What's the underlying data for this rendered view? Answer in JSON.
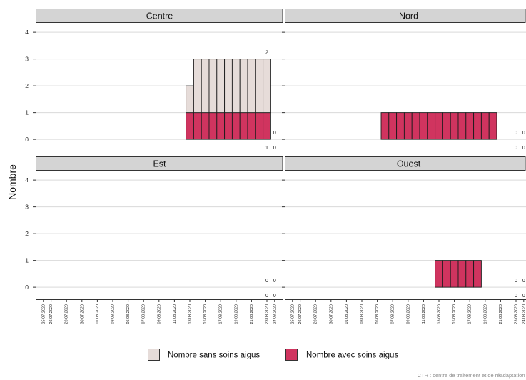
{
  "chart_data": {
    "type": "bar",
    "stacked": true,
    "ylabel": "Nombre",
    "ylim": [
      -0.45,
      4.35
    ],
    "yticks": [
      0,
      1,
      2,
      3,
      4
    ],
    "xlim": [
      "24.07.2020",
      "25.08.2020"
    ],
    "xticks": [
      "25.07.2020",
      "26.07.2020",
      "28.07.2020",
      "30.07.2020",
      "01.08.2020",
      "03.08.2020",
      "05.08.2020",
      "07.08.2020",
      "09.08.2020",
      "11.08.2020",
      "13.08.2020",
      "15.08.2020",
      "17.08.2020",
      "19.08.2020",
      "21.08.2020",
      "23.08.2020",
      "24.08.2020"
    ],
    "grid": true,
    "legend_position": "bottom",
    "series": [
      {
        "name": "Nombre sans soins aigus",
        "color": "#e6dcd9"
      },
      {
        "name": "Nombre avec soins aigus",
        "color": "#d0345f"
      }
    ],
    "facets": [
      {
        "name": "Centre",
        "x": [
          "13.08.2020",
          "14.08.2020",
          "15.08.2020",
          "16.08.2020",
          "17.08.2020",
          "18.08.2020",
          "19.08.2020",
          "20.08.2020",
          "21.08.2020",
          "22.08.2020",
          "23.08.2020"
        ],
        "values": [
          [
            1,
            2,
            2,
            2,
            2,
            2,
            2,
            2,
            2,
            2,
            2
          ],
          [
            1,
            1,
            1,
            1,
            1,
            1,
            1,
            1,
            1,
            1,
            1
          ]
        ],
        "labels": {
          "x": [
            "23.08.2020",
            "24.08.2020"
          ],
          "values": [
            [
              2,
              0
            ],
            [
              1,
              0
            ]
          ]
        }
      },
      {
        "name": "Nord",
        "x": [
          "06.08.2020",
          "07.08.2020",
          "08.08.2020",
          "09.08.2020",
          "10.08.2020",
          "11.08.2020",
          "12.08.2020",
          "13.08.2020",
          "14.08.2020",
          "15.08.2020",
          "16.08.2020",
          "17.08.2020",
          "18.08.2020",
          "19.08.2020",
          "20.08.2020"
        ],
        "values": [
          [
            0,
            0,
            0,
            0,
            0,
            0,
            0,
            0,
            0,
            0,
            0,
            0,
            0,
            0,
            0
          ],
          [
            1,
            1,
            1,
            1,
            1,
            1,
            1,
            1,
            1,
            1,
            1,
            1,
            1,
            1,
            1
          ]
        ],
        "labels": {
          "x": [
            "23.08.2020",
            "24.08.2020"
          ],
          "values": [
            [
              0,
              0
            ],
            [
              0,
              0
            ]
          ]
        }
      },
      {
        "name": "Est",
        "x": [],
        "values": [
          [],
          []
        ],
        "labels": {
          "x": [
            "23.08.2020",
            "24.08.2020"
          ],
          "values": [
            [
              0,
              0
            ],
            [
              0,
              0
            ]
          ]
        }
      },
      {
        "name": "Ouest",
        "x": [
          "13.08.2020",
          "14.08.2020",
          "15.08.2020",
          "16.08.2020",
          "17.08.2020",
          "18.08.2020"
        ],
        "values": [
          [
            0,
            0,
            0,
            0,
            0,
            0
          ],
          [
            1,
            1,
            1,
            1,
            1,
            1
          ]
        ],
        "labels": {
          "x": [
            "23.08.2020",
            "24.08.2020"
          ],
          "values": [
            [
              0,
              0
            ],
            [
              0,
              0
            ]
          ]
        }
      }
    ]
  },
  "caption": "CTR : centre de traitement et de réadaptation"
}
